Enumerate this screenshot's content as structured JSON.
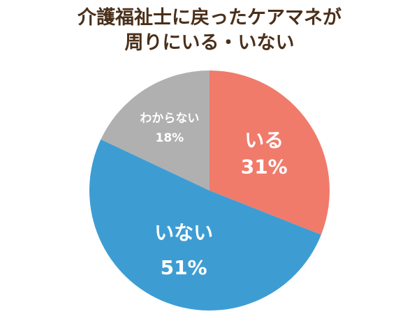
{
  "chart_data": {
    "type": "pie",
    "title_lines": [
      "介護福祉士に戻ったケアマネが",
      "周りにいる・いない"
    ],
    "slices": [
      {
        "label": "いる",
        "value": 31,
        "value_label": "31%",
        "color": "#f07b6b",
        "label_color": "#ffffff"
      },
      {
        "label": "いない",
        "value": 51,
        "value_label": "51%",
        "color": "#3d9dd3",
        "label_color": "#ffffff"
      },
      {
        "label": "わからない",
        "value": 18,
        "value_label": "18%",
        "color": "#b0b0b0",
        "label_color": "#ffffff"
      }
    ]
  }
}
